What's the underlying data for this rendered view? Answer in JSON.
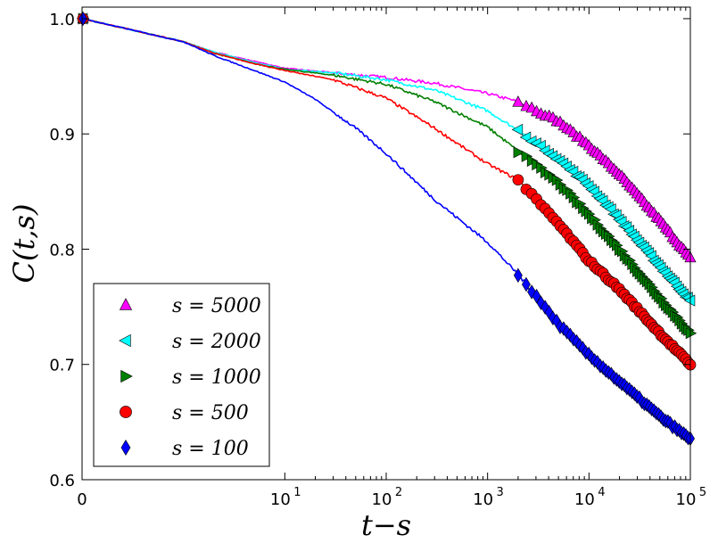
{
  "chart_data": {
    "type": "line",
    "title": "",
    "xlabel": "t−s",
    "ylabel": "C(t,s)",
    "xscale": "symlog",
    "xlim": [
      0,
      100000
    ],
    "ylim": [
      0.6,
      1.01
    ],
    "x_ticks": [
      {
        "value": 0,
        "label": "0"
      },
      {
        "value": 10,
        "label": "10",
        "exp": "1"
      },
      {
        "value": 100,
        "label": "10",
        "exp": "2"
      },
      {
        "value": 1000,
        "label": "10",
        "exp": "3"
      },
      {
        "value": 10000,
        "label": "10",
        "exp": "4"
      },
      {
        "value": 100000,
        "label": "10",
        "exp": "5"
      }
    ],
    "y_ticks": [
      {
        "value": 0.6,
        "label": "0.6"
      },
      {
        "value": 0.7,
        "label": "0.7"
      },
      {
        "value": 0.8,
        "label": "0.8"
      },
      {
        "value": 0.9,
        "label": "0.9"
      },
      {
        "value": 1.0,
        "label": "1.0"
      }
    ],
    "legend_position": "lower-left",
    "series": [
      {
        "name": "s = 5000",
        "s": "5000",
        "color": "#ff00ff",
        "marker": "triangle-up",
        "marker_range": [
          2000,
          100000
        ],
        "points": [
          [
            0,
            1.0
          ],
          [
            1,
            0.98
          ],
          [
            2,
            0.971
          ],
          [
            5,
            0.963
          ],
          [
            10,
            0.957
          ],
          [
            30,
            0.953
          ],
          [
            100,
            0.949
          ],
          [
            300,
            0.944
          ],
          [
            1000,
            0.935
          ],
          [
            2000,
            0.928
          ],
          [
            5000,
            0.911
          ],
          [
            10000,
            0.89
          ],
          [
            20000,
            0.865
          ],
          [
            50000,
            0.825
          ],
          [
            100000,
            0.792
          ]
        ]
      },
      {
        "name": "s = 2000",
        "s": "2000",
        "color": "#00ffff",
        "marker": "triangle-left",
        "marker_range": [
          2000,
          100000
        ],
        "points": [
          [
            0,
            1.0
          ],
          [
            1,
            0.98
          ],
          [
            2,
            0.971
          ],
          [
            5,
            0.962
          ],
          [
            10,
            0.956
          ],
          [
            30,
            0.953
          ],
          [
            100,
            0.947
          ],
          [
            300,
            0.938
          ],
          [
            1000,
            0.92
          ],
          [
            2000,
            0.903
          ],
          [
            5000,
            0.878
          ],
          [
            10000,
            0.855
          ],
          [
            20000,
            0.826
          ],
          [
            50000,
            0.785
          ],
          [
            100000,
            0.755
          ]
        ]
      },
      {
        "name": "s = 1000",
        "s": "1000",
        "color": "#007f00",
        "marker": "triangle-right",
        "marker_range": [
          2000,
          100000
        ],
        "points": [
          [
            0,
            1.0
          ],
          [
            1,
            0.98
          ],
          [
            2,
            0.97
          ],
          [
            5,
            0.961
          ],
          [
            10,
            0.956
          ],
          [
            30,
            0.951
          ],
          [
            100,
            0.943
          ],
          [
            300,
            0.928
          ],
          [
            1000,
            0.906
          ],
          [
            2000,
            0.885
          ],
          [
            5000,
            0.858
          ],
          [
            10000,
            0.83
          ],
          [
            20000,
            0.8
          ],
          [
            50000,
            0.758
          ],
          [
            100000,
            0.727
          ]
        ]
      },
      {
        "name": "s = 500",
        "s": "500",
        "color": "#ff0000",
        "marker": "circle",
        "marker_range": [
          2000,
          100000
        ],
        "points": [
          [
            0,
            1.0
          ],
          [
            1,
            0.98
          ],
          [
            2,
            0.97
          ],
          [
            5,
            0.961
          ],
          [
            10,
            0.955
          ],
          [
            30,
            0.947
          ],
          [
            100,
            0.931
          ],
          [
            300,
            0.905
          ],
          [
            1000,
            0.874
          ],
          [
            2000,
            0.86
          ],
          [
            5000,
            0.822
          ],
          [
            10000,
            0.79
          ],
          [
            20000,
            0.765
          ],
          [
            50000,
            0.727
          ],
          [
            100000,
            0.7
          ]
        ]
      },
      {
        "name": "s = 100",
        "s": "100",
        "color": "#0000ff",
        "marker": "diamond",
        "marker_range": [
          2000,
          100000
        ],
        "points": [
          [
            0,
            1.0
          ],
          [
            1,
            0.98
          ],
          [
            2,
            0.968
          ],
          [
            5,
            0.955
          ],
          [
            10,
            0.945
          ],
          [
            20,
            0.93
          ],
          [
            50,
            0.905
          ],
          [
            100,
            0.883
          ],
          [
            300,
            0.843
          ],
          [
            1000,
            0.806
          ],
          [
            2000,
            0.778
          ],
          [
            5000,
            0.735
          ],
          [
            10000,
            0.708
          ],
          [
            20000,
            0.685
          ],
          [
            50000,
            0.655
          ],
          [
            100000,
            0.635
          ]
        ]
      }
    ]
  }
}
